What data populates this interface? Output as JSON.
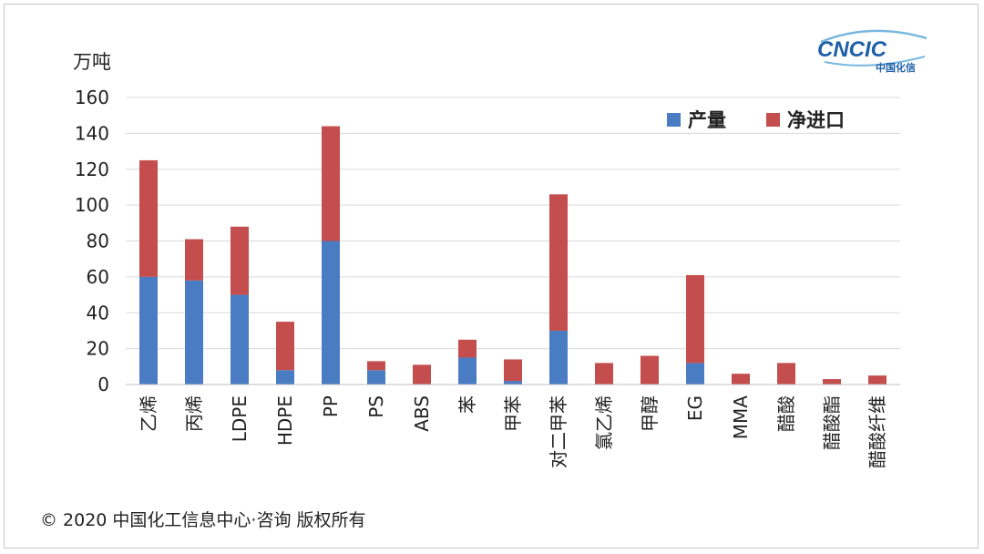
{
  "footer": {
    "copyright": "© 2020 中国化工信息中心·咨询 版权所有"
  },
  "logo": {
    "main": "CNCIC",
    "sub": "中国化信"
  },
  "chart_data": {
    "type": "bar",
    "stacked": true,
    "ylabel": "万吨",
    "ylim": [
      0,
      160
    ],
    "yticks": [
      0,
      20,
      40,
      60,
      80,
      100,
      120,
      140,
      160
    ],
    "grid": true,
    "legend_position": "top-right",
    "categories": [
      "乙烯",
      "丙烯",
      "LDPE",
      "HDPE",
      "PP",
      "PS",
      "ABS",
      "苯",
      "甲苯",
      "对二甲苯",
      "氯乙烯",
      "甲醇",
      "EG",
      "MMA",
      "醋酸",
      "醋酸酯",
      "醋酸纤维"
    ],
    "series": [
      {
        "name": "产量",
        "color": "#4a7cc4",
        "values": [
          60,
          58,
          50,
          8,
          80,
          8,
          0,
          15,
          2,
          30,
          0,
          0,
          12,
          0,
          0,
          0,
          0
        ]
      },
      {
        "name": "净进口",
        "color": "#c44d4d",
        "values": [
          65,
          23,
          38,
          27,
          64,
          5,
          11,
          10,
          12,
          76,
          12,
          16,
          49,
          6,
          12,
          3,
          5
        ]
      }
    ]
  }
}
